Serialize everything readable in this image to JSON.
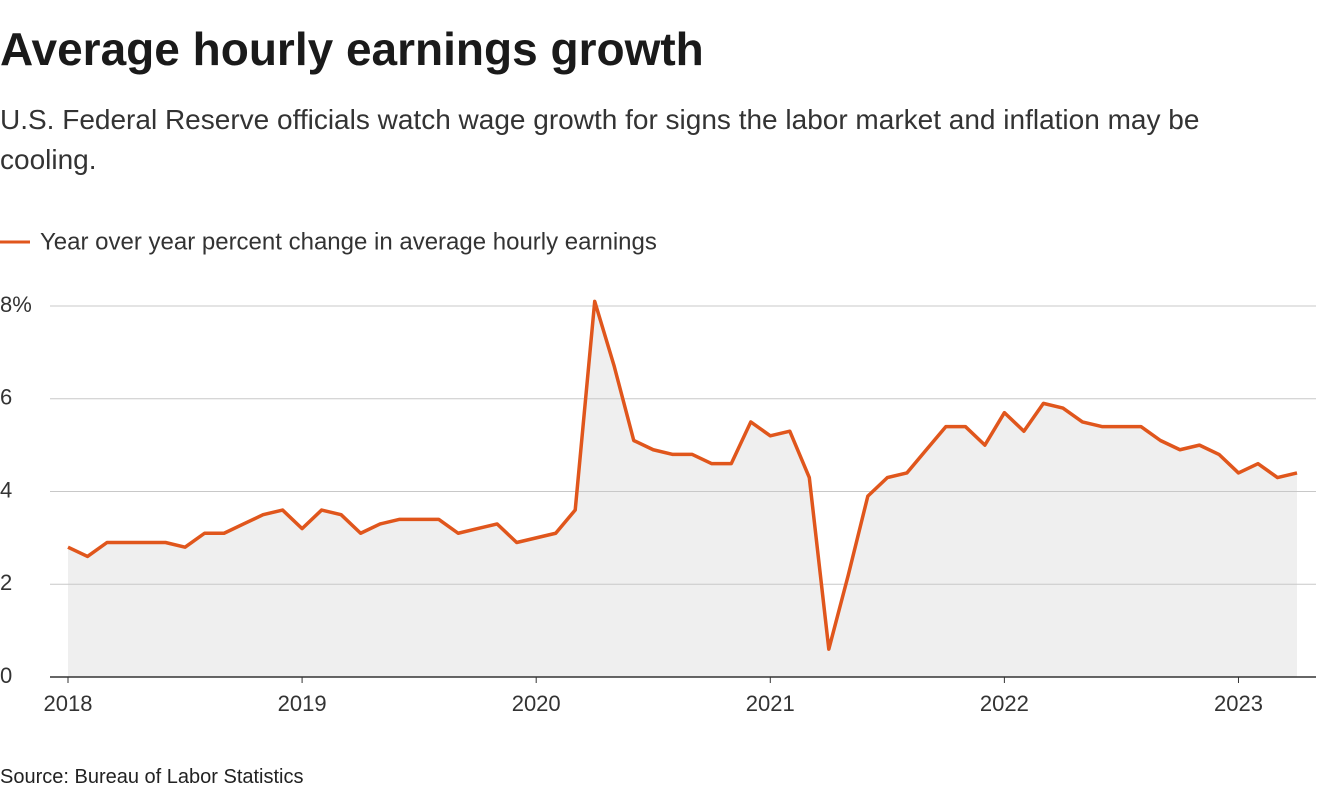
{
  "chart_data": {
    "type": "line",
    "title": "Average hourly earnings growth",
    "subtitle": "U.S. Federal Reserve officials watch wage growth for signs the labor market and inflation may be cooling.",
    "source": "Source: Bureau of Labor Statistics",
    "x": [
      "2018-01",
      "2018-02",
      "2018-03",
      "2018-04",
      "2018-05",
      "2018-06",
      "2018-07",
      "2018-08",
      "2018-09",
      "2018-10",
      "2018-11",
      "2018-12",
      "2019-01",
      "2019-02",
      "2019-03",
      "2019-04",
      "2019-05",
      "2019-06",
      "2019-07",
      "2019-08",
      "2019-09",
      "2019-10",
      "2019-11",
      "2019-12",
      "2020-01",
      "2020-02",
      "2020-03",
      "2020-04",
      "2020-05",
      "2020-06",
      "2020-07",
      "2020-08",
      "2020-09",
      "2020-10",
      "2020-11",
      "2020-12",
      "2021-01",
      "2021-02",
      "2021-03",
      "2021-04",
      "2021-05",
      "2021-06",
      "2021-07",
      "2021-08",
      "2021-09",
      "2021-10",
      "2021-11",
      "2021-12",
      "2022-01",
      "2022-02",
      "2022-03",
      "2022-04",
      "2022-05",
      "2022-06",
      "2022-07",
      "2022-08",
      "2022-09",
      "2022-10",
      "2022-11",
      "2022-12",
      "2023-01",
      "2023-02",
      "2023-03",
      "2023-04"
    ],
    "series": [
      {
        "name": "Year over year percent change in average hourly earnings",
        "color": "#e0561c",
        "values": [
          2.8,
          2.6,
          2.9,
          2.9,
          2.9,
          2.9,
          2.8,
          3.1,
          3.1,
          3.3,
          3.5,
          3.6,
          3.2,
          3.6,
          3.5,
          3.1,
          3.3,
          3.4,
          3.4,
          3.4,
          3.1,
          3.2,
          3.3,
          2.9,
          3.0,
          3.1,
          3.6,
          8.1,
          6.7,
          5.1,
          4.9,
          4.8,
          4.8,
          4.6,
          4.6,
          5.5,
          5.2,
          5.3,
          4.3,
          0.6,
          2.2,
          3.9,
          4.3,
          4.4,
          4.9,
          5.4,
          5.4,
          5.0,
          5.7,
          5.3,
          5.9,
          5.8,
          5.5,
          5.4,
          5.4,
          5.4,
          5.1,
          4.9,
          5.0,
          4.8,
          4.4,
          4.6,
          4.3,
          4.4
        ]
      }
    ],
    "area_color": "#efefef",
    "xticks": [
      {
        "value": "2018-01",
        "label": "2018"
      },
      {
        "value": "2019-01",
        "label": "2019"
      },
      {
        "value": "2020-01",
        "label": "2020"
      },
      {
        "value": "2021-01",
        "label": "2021"
      },
      {
        "value": "2022-01",
        "label": "2022"
      },
      {
        "value": "2023-01",
        "label": "2023"
      }
    ],
    "ylim": [
      0,
      8
    ],
    "yticks": [
      0,
      2,
      4,
      6,
      {
        "value": 8,
        "label": "8%"
      }
    ],
    "grid": true
  }
}
